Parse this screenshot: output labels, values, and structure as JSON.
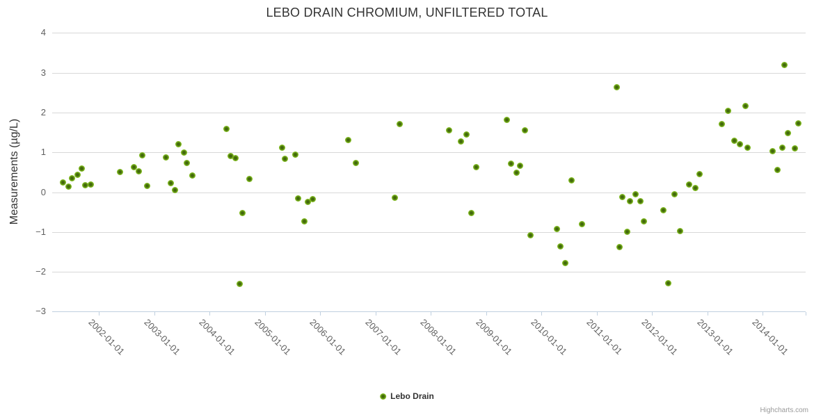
{
  "title": "LEBO DRAIN CHROMIUM, UNFILTERED TOTAL",
  "legend": {
    "label": "Lebo Drain"
  },
  "credits": "Highcharts.com",
  "colors": {
    "marker_outer": "#80ba20",
    "marker_core": "#42690b",
    "grid": "#d8d8d8",
    "axis_line": "#c0d0e0",
    "tick_label": "#606060",
    "title": "#333333",
    "credits": "#999999"
  },
  "chart_data": {
    "type": "scatter",
    "title": "LEBO DRAIN CHROMIUM, UNFILTERED TOTAL",
    "xlabel": "",
    "ylabel": "Measurements (µg/L)",
    "ylim": [
      -3,
      4
    ],
    "y_ticks": [
      4,
      3,
      2,
      1,
      0,
      -1,
      -2,
      -3
    ],
    "x_tick_labels": [
      "2002-01-01",
      "2003-01-01",
      "2004-01-01",
      "2005-01-01",
      "2006-01-01",
      "2007-01-01",
      "2008-01-01",
      "2009-01-01",
      "2010-01-01",
      "2011-01-01",
      "2012-01-01",
      "2013-01-01",
      "2014-01-01"
    ],
    "grid": true,
    "legend_position": "bottom-center",
    "series": [
      {
        "name": "Lebo Drain",
        "x_unit": "decimal_year",
        "points": [
          [
            2001.35,
            0.24
          ],
          [
            2001.45,
            0.14
          ],
          [
            2001.51,
            0.35
          ],
          [
            2001.62,
            0.44
          ],
          [
            2001.69,
            0.6
          ],
          [
            2001.76,
            0.17
          ],
          [
            2001.85,
            0.2
          ],
          [
            2002.38,
            0.5
          ],
          [
            2002.63,
            0.62
          ],
          [
            2002.72,
            0.52
          ],
          [
            2002.79,
            0.93
          ],
          [
            2002.88,
            0.15
          ],
          [
            2003.21,
            0.88
          ],
          [
            2003.3,
            0.23
          ],
          [
            2003.38,
            0.05
          ],
          [
            2003.44,
            1.2
          ],
          [
            2003.54,
            0.99
          ],
          [
            2003.59,
            0.73
          ],
          [
            2003.69,
            0.42
          ],
          [
            2004.31,
            1.59
          ],
          [
            2004.38,
            0.91
          ],
          [
            2004.47,
            0.86
          ],
          [
            2004.55,
            -2.3
          ],
          [
            2004.6,
            -0.52
          ],
          [
            2004.72,
            0.34
          ],
          [
            2005.31,
            1.12
          ],
          [
            2005.36,
            0.84
          ],
          [
            2005.55,
            0.95
          ],
          [
            2005.61,
            -0.15
          ],
          [
            2005.72,
            -0.73
          ],
          [
            2005.78,
            -0.25
          ],
          [
            2005.87,
            -0.18
          ],
          [
            2006.51,
            1.31
          ],
          [
            2006.65,
            0.73
          ],
          [
            2007.35,
            -0.14
          ],
          [
            2007.44,
            1.71
          ],
          [
            2008.33,
            1.55
          ],
          [
            2008.55,
            1.28
          ],
          [
            2008.65,
            1.45
          ],
          [
            2008.73,
            -0.52
          ],
          [
            2008.83,
            0.62
          ],
          [
            2009.38,
            1.81
          ],
          [
            2009.45,
            0.72
          ],
          [
            2009.55,
            0.49
          ],
          [
            2009.62,
            0.66
          ],
          [
            2009.7,
            1.56
          ],
          [
            2009.8,
            -1.08
          ],
          [
            2010.28,
            -0.93
          ],
          [
            2010.35,
            -1.36
          ],
          [
            2010.43,
            -1.78
          ],
          [
            2010.55,
            0.3
          ],
          [
            2010.74,
            -0.8
          ],
          [
            2011.36,
            2.63
          ],
          [
            2011.41,
            -1.38
          ],
          [
            2011.46,
            -0.13
          ],
          [
            2011.55,
            -1.0
          ],
          [
            2011.61,
            -0.22
          ],
          [
            2011.7,
            -0.05
          ],
          [
            2011.79,
            -0.22
          ],
          [
            2011.86,
            -0.73
          ],
          [
            2012.21,
            -0.45
          ],
          [
            2012.3,
            -2.28
          ],
          [
            2012.41,
            -0.05
          ],
          [
            2012.51,
            -0.97
          ],
          [
            2012.67,
            0.2
          ],
          [
            2012.78,
            0.1
          ],
          [
            2012.86,
            0.46
          ],
          [
            2013.27,
            1.71
          ],
          [
            2013.38,
            2.05
          ],
          [
            2013.49,
            1.29
          ],
          [
            2013.59,
            1.2
          ],
          [
            2013.69,
            2.16
          ],
          [
            2013.73,
            1.12
          ],
          [
            2014.18,
            1.03
          ],
          [
            2014.27,
            0.55
          ],
          [
            2014.36,
            1.12
          ],
          [
            2014.39,
            3.19
          ],
          [
            2014.46,
            1.48
          ],
          [
            2014.59,
            1.1
          ],
          [
            2014.65,
            1.72
          ]
        ]
      }
    ]
  }
}
